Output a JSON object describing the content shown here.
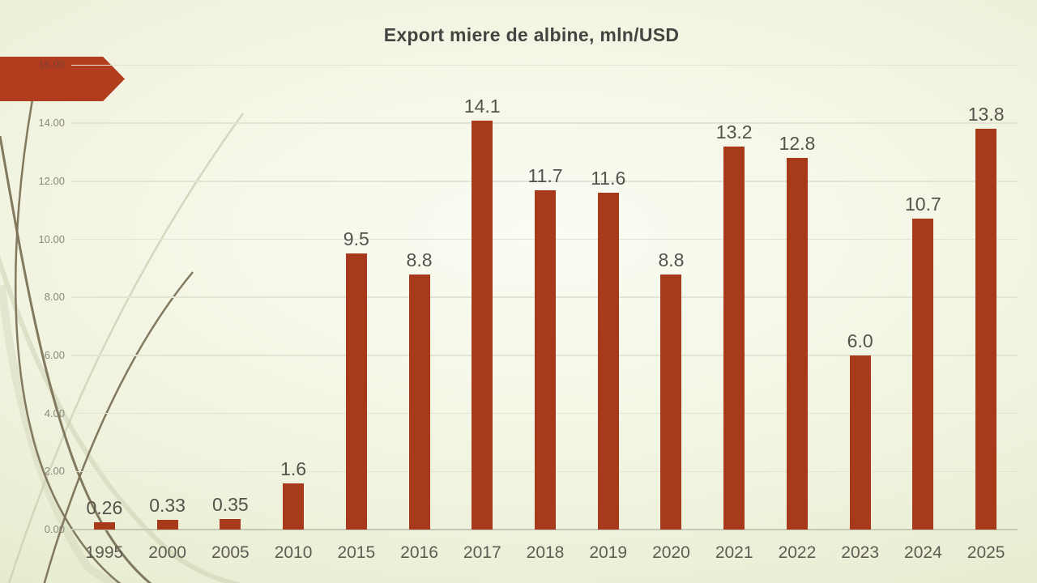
{
  "slide": {
    "title": "Export miere de albine, mln/USD"
  },
  "chart_data": {
    "type": "bar",
    "title": "Export miere de albine, mln/USD",
    "categories": [
      "1995",
      "2000",
      "2005",
      "2010",
      "2015",
      "2016",
      "2017",
      "2018",
      "2019",
      "2020",
      "2021",
      "2022",
      "2023",
      "2024",
      "2025"
    ],
    "values": [
      0.26,
      0.33,
      0.35,
      1.6,
      9.5,
      8.8,
      14.1,
      11.7,
      11.6,
      8.8,
      13.2,
      12.8,
      6,
      10.7,
      13.8
    ],
    "data_labels": [
      "0.26",
      "0.33",
      "0.35",
      "1.6",
      "9.5",
      "8.8",
      "14.1",
      "11.7",
      "11.6",
      "8.8",
      "13.2",
      "12.8",
      "6.0",
      "10.7",
      "13.8"
    ],
    "xlabel": "",
    "ylabel": "",
    "ylim": [
      0,
      16
    ],
    "ytick_step": 2,
    "ytick_labels": [
      "0.00",
      "2.00",
      "4.00",
      "6.00",
      "8.00",
      "10.00",
      "12.00",
      "14.00",
      "16.00"
    ],
    "grid": true,
    "legend": false
  },
  "colors": {
    "bar": "#a83a1c",
    "arrow": "#b23c1e",
    "title": "#454440",
    "data_label": "#55534b",
    "x_label": "#5f5c53",
    "y_tick": "#8b887c",
    "y_tick_on_arrow": "#7d4334",
    "gridline": "#e2e4d4",
    "axis_line": "#c6c8b6",
    "curve_dark": "#7b7257",
    "curve_pale": "#ccd1b3",
    "bg_center": "#fbfcf3",
    "bg_edge": "#dbe1c1"
  },
  "decor": {
    "arrow_shape": "red-banner-arrow",
    "curves": "wisp-grass-curves"
  }
}
